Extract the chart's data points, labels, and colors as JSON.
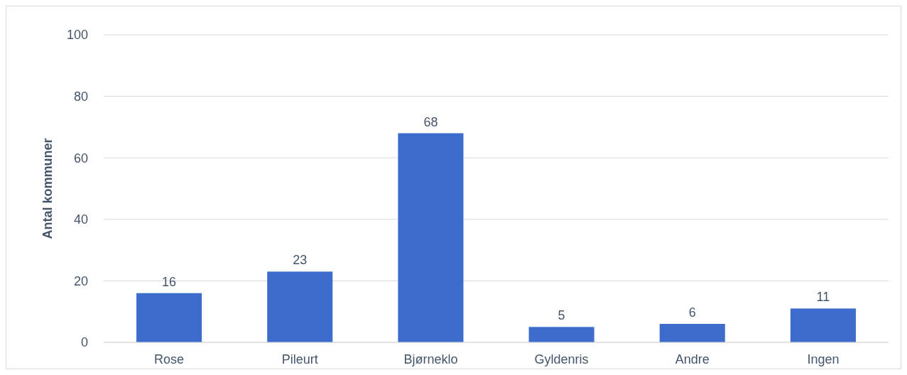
{
  "chart_data": {
    "type": "bar",
    "ylabel": "Antal kommuner",
    "categories": [
      "Rose",
      "Pileurt",
      "Bjørneklo",
      "Gyldenris",
      "Andre",
      "Ingen"
    ],
    "values": [
      16,
      23,
      68,
      5,
      6,
      11
    ],
    "color": "#3d6ccc",
    "ylim": [
      0,
      100
    ],
    "yticks": [
      0,
      20,
      40,
      60,
      80,
      100
    ],
    "grid": "y",
    "data_labels": true
  }
}
